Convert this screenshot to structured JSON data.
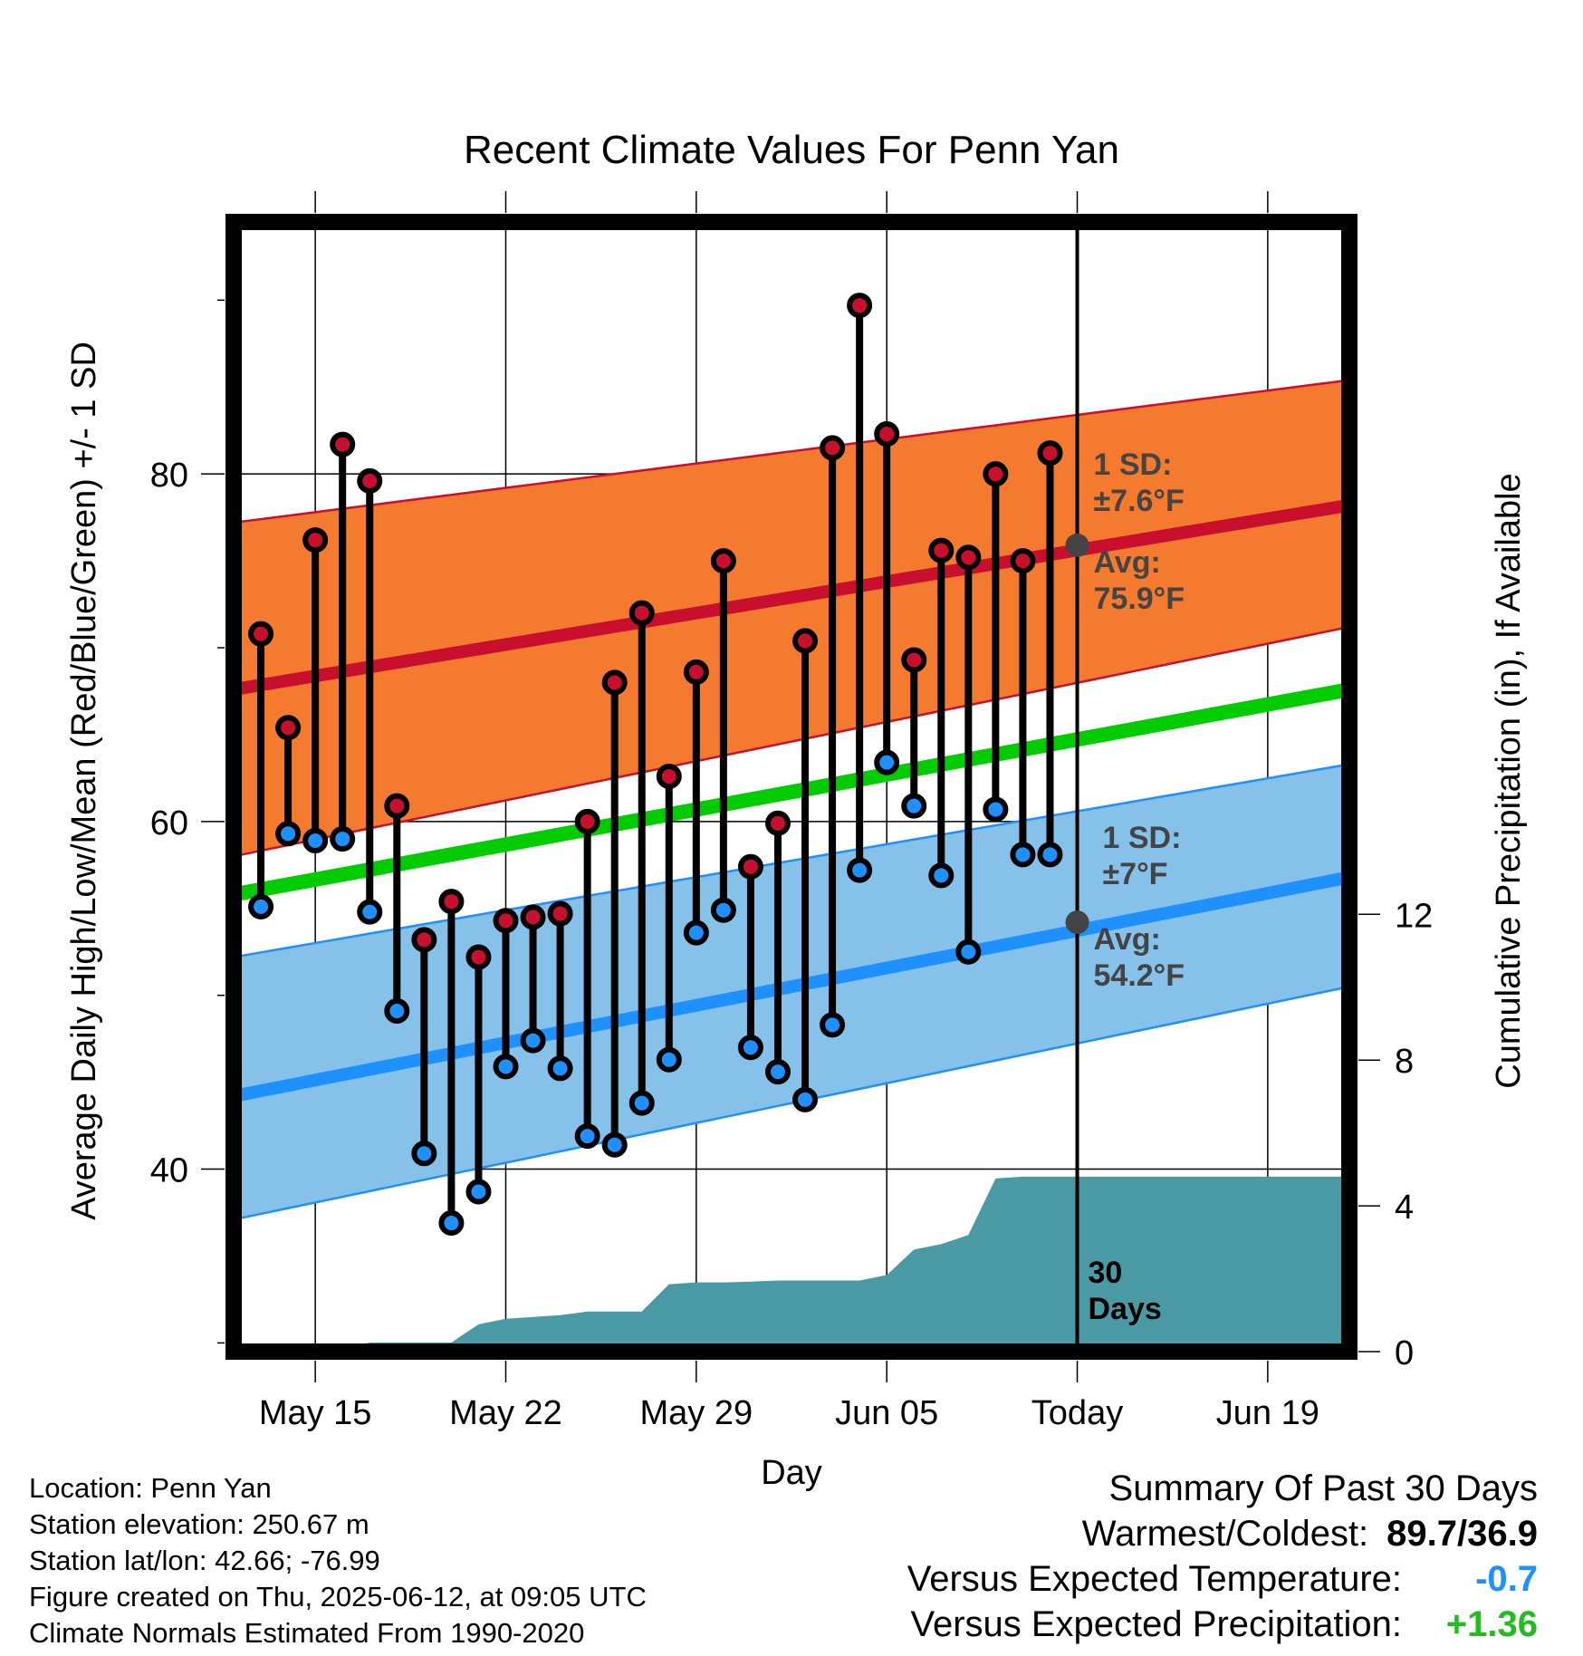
{
  "chart_data": {
    "type": "line",
    "title": "Recent Climate Values For Penn Yan",
    "xlabel": "Day",
    "ylabel": "Average Daily High/Low/Mean (Red/Blue/Green) +/- 1 SD",
    "y2label": "Cumulative Precipitation (in), If Available",
    "ylim": [
      29.5,
      94.5
    ],
    "y2lim": [
      0,
      31
    ],
    "yticks": [
      40,
      60,
      80
    ],
    "y2ticks": [
      0,
      4,
      8,
      12
    ],
    "x_domain": [
      "2025-05-12",
      "2025-06-22"
    ],
    "xticks": [
      {
        "date": "2025-05-15",
        "label": "May 15"
      },
      {
        "date": "2025-05-22",
        "label": "May 22"
      },
      {
        "date": "2025-05-29",
        "label": "May 29"
      },
      {
        "date": "2025-06-05",
        "label": "Jun 05"
      },
      {
        "date": "2025-06-12",
        "label": "Today"
      },
      {
        "date": "2025-06-19",
        "label": "Jun 19"
      }
    ],
    "today": "2025-06-12",
    "today_label": [
      "30",
      "Days"
    ],
    "grid": true,
    "normals": {
      "dates": [
        "2025-05-12",
        "2025-06-22"
      ],
      "high_mean": [
        67.6,
        78.2
      ],
      "high_sd_upper": [
        77.2,
        85.4
      ],
      "high_sd_lower": [
        58.0,
        71.2
      ],
      "mean": [
        55.8,
        67.6
      ],
      "low_mean": [
        44.2,
        56.8
      ],
      "low_sd_upper": [
        52.2,
        63.3
      ],
      "low_sd_lower": [
        37.1,
        50.5
      ]
    },
    "annotations": {
      "high_sd": [
        "1 SD:",
        "±7.6°F"
      ],
      "high_avg": [
        "Avg:",
        "75.9°F"
      ],
      "low_sd": [
        "1 SD:",
        "±7°F"
      ],
      "low_avg": [
        "Avg:",
        "54.2°F"
      ],
      "high_avg_value": 75.9,
      "low_avg_value": 54.2
    },
    "series": [
      {
        "name": "High",
        "color": "#c8102e",
        "dates": [
          "2025-05-13",
          "2025-05-14",
          "2025-05-15",
          "2025-05-16",
          "2025-05-17",
          "2025-05-18",
          "2025-05-19",
          "2025-05-20",
          "2025-05-21",
          "2025-05-22",
          "2025-05-23",
          "2025-05-24",
          "2025-05-25",
          "2025-05-26",
          "2025-05-27",
          "2025-05-28",
          "2025-05-29",
          "2025-05-30",
          "2025-05-31",
          "2025-06-01",
          "2025-06-02",
          "2025-06-03",
          "2025-06-04",
          "2025-06-05",
          "2025-06-06",
          "2025-06-07",
          "2025-06-08",
          "2025-06-09",
          "2025-06-10",
          "2025-06-11"
        ],
        "values": [
          70.8,
          65.4,
          76.2,
          81.7,
          79.6,
          60.9,
          53.2,
          55.4,
          52.2,
          54.3,
          54.5,
          54.7,
          60.0,
          68.0,
          72.0,
          62.6,
          68.6,
          75.0,
          57.4,
          59.9,
          70.4,
          81.5,
          89.7,
          82.3,
          69.3,
          75.6,
          75.2,
          80.0,
          75.0,
          81.2
        ]
      },
      {
        "name": "Low",
        "color": "#1e90ff",
        "dates": [
          "2025-05-13",
          "2025-05-14",
          "2025-05-15",
          "2025-05-16",
          "2025-05-17",
          "2025-05-18",
          "2025-05-19",
          "2025-05-20",
          "2025-05-21",
          "2025-05-22",
          "2025-05-23",
          "2025-05-24",
          "2025-05-25",
          "2025-05-26",
          "2025-05-27",
          "2025-05-28",
          "2025-05-29",
          "2025-05-30",
          "2025-05-31",
          "2025-06-01",
          "2025-06-02",
          "2025-06-03",
          "2025-06-04",
          "2025-06-05",
          "2025-06-06",
          "2025-06-07",
          "2025-06-08",
          "2025-06-09",
          "2025-06-10",
          "2025-06-11"
        ],
        "values": [
          55.1,
          59.3,
          58.9,
          59.0,
          54.8,
          49.1,
          40.9,
          36.9,
          38.7,
          45.9,
          47.4,
          45.8,
          41.9,
          41.4,
          43.8,
          46.3,
          53.6,
          54.9,
          47.0,
          45.6,
          44.0,
          48.3,
          57.2,
          63.4,
          60.9,
          56.9,
          52.5,
          60.7,
          58.1,
          58.1
        ]
      },
      {
        "name": "Cumulative Precipitation",
        "color": "#4a9aa5",
        "dates": [
          "2025-05-12",
          "2025-05-16",
          "2025-05-17",
          "2025-05-18",
          "2025-05-19",
          "2025-05-20",
          "2025-05-21",
          "2025-05-22",
          "2025-05-23",
          "2025-05-24",
          "2025-05-25",
          "2025-05-26",
          "2025-05-27",
          "2025-05-28",
          "2025-05-29",
          "2025-05-30",
          "2025-05-31",
          "2025-06-01",
          "2025-06-02",
          "2025-06-03",
          "2025-06-04",
          "2025-06-05",
          "2025-06-06",
          "2025-06-07",
          "2025-06-08",
          "2025-06-09",
          "2025-06-10",
          "2025-06-11",
          "2025-06-12",
          "2025-06-22"
        ],
        "values": [
          0,
          0,
          0.25,
          0.25,
          0.25,
          0.25,
          0.75,
          0.9,
          0.95,
          1.0,
          1.1,
          1.1,
          1.1,
          1.85,
          1.9,
          1.9,
          1.92,
          1.95,
          1.95,
          1.95,
          1.95,
          2.1,
          2.8,
          2.95,
          3.2,
          4.75,
          4.8,
          4.8,
          4.8,
          4.8
        ]
      }
    ]
  },
  "info": {
    "location": "Location: Penn Yan",
    "elevation": "Station elevation: 250.67 m",
    "latlon": "Station lat/lon: 42.66; -76.99",
    "created": "Figure created on Thu, 2025-06-12, at 09:05 UTC",
    "normals": "Climate Normals Estimated From 1990-2020"
  },
  "summary": {
    "title": "Summary Of Past 30 Days",
    "warmest_label": "Warmest/Coldest:",
    "warmest_value": "89.7/36.9",
    "temp_label": "Versus Expected Temperature:",
    "temp_value": "-0.7",
    "temp_color": "#1e90ff",
    "precip_label": "Versus Expected Precipitation:",
    "precip_value": "+1.36",
    "precip_color": "#22bb22"
  },
  "colors": {
    "high": "#c8102e",
    "high_band": "#f47a30",
    "low": "#1e90ff",
    "low_band": "#85c1e9",
    "mean": "#00cc00",
    "precip": "#4a9aa5",
    "annotation": "#444444"
  }
}
